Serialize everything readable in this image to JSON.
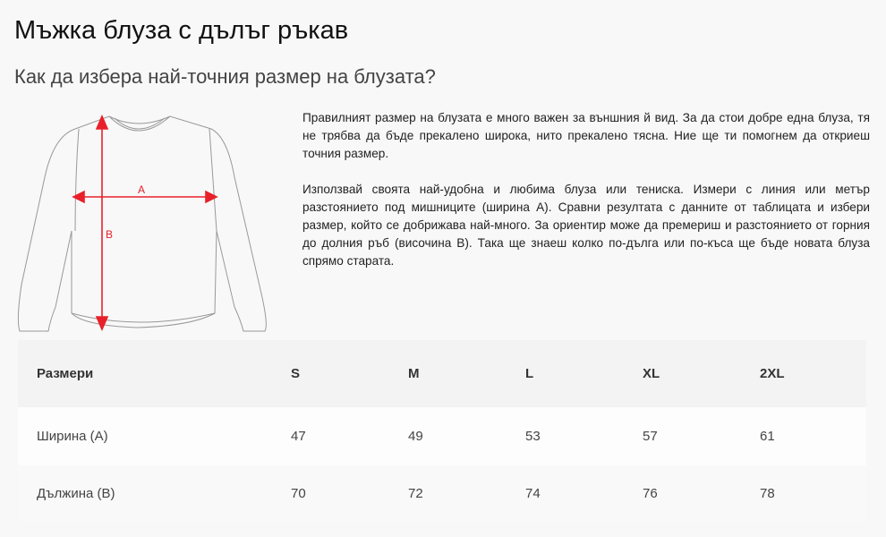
{
  "title": "Мъжка блуза с дълъг ръкав",
  "subtitle": "Как да избера най-точния размер на блузата?",
  "illustration": {
    "label_a": "A",
    "label_b": "B",
    "arrow_color": "#e8202a"
  },
  "description": [
    "Правилният размер на блузата е много важен за външния й вид. За да стои добре една блуза, тя не трябва да бъде прекалено широка, нито прекалено тясна. Ние ще ти помогнем да откриеш точния размер.",
    "Използвай своята най-удобна и любима блуза или тениска. Измери с линия или метър разстоянието под мишниците (ширина А). Сравни резултата с данните от таблицата и избери размер, който се добрижава най-много. За ориентир може да премериш и разстоянието от горния до долния ръб (височина В). Така ще знаеш колко по-дълга или по-къса ще бъде новата блуза спрямо старата."
  ],
  "table": {
    "headers": [
      "Размери",
      "S",
      "M",
      "L",
      "XL",
      "2XL"
    ],
    "rows": [
      [
        "Ширина (А)",
        "47",
        "49",
        "53",
        "57",
        "61"
      ],
      [
        "Дължина (В)",
        "70",
        "72",
        "74",
        "76",
        "78"
      ]
    ]
  }
}
